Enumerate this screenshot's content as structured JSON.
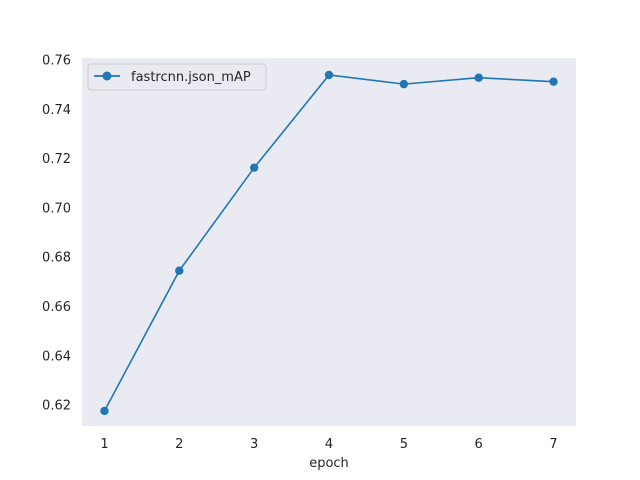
{
  "chart_data": {
    "type": "line",
    "title": "",
    "xlabel": "epoch",
    "ylabel": "",
    "x": [
      1,
      2,
      3,
      4,
      5,
      6,
      7
    ],
    "xlim": [
      0.7,
      7.3
    ],
    "ylim": [
      0.6115,
      0.7608
    ],
    "xticks": [
      1,
      2,
      3,
      4,
      5,
      6,
      7
    ],
    "xtick_labels": [
      "1",
      "2",
      "3",
      "4",
      "5",
      "6",
      "7"
    ],
    "yticks": [
      0.62,
      0.64,
      0.66,
      0.68,
      0.7,
      0.72,
      0.74,
      0.76
    ],
    "ytick_labels": [
      "0.62",
      "0.64",
      "0.66",
      "0.68",
      "0.70",
      "0.72",
      "0.74",
      "0.76"
    ],
    "series": [
      {
        "name": "fastrcnn.json_mAP",
        "color": "#1f77b4",
        "marker": "circle",
        "values": [
          0.6176,
          0.6745,
          0.7163,
          0.7539,
          0.7502,
          0.7528,
          0.7512
        ]
      }
    ],
    "grid": false,
    "background": "#eaeaf2",
    "legend_position": "upper-left"
  }
}
